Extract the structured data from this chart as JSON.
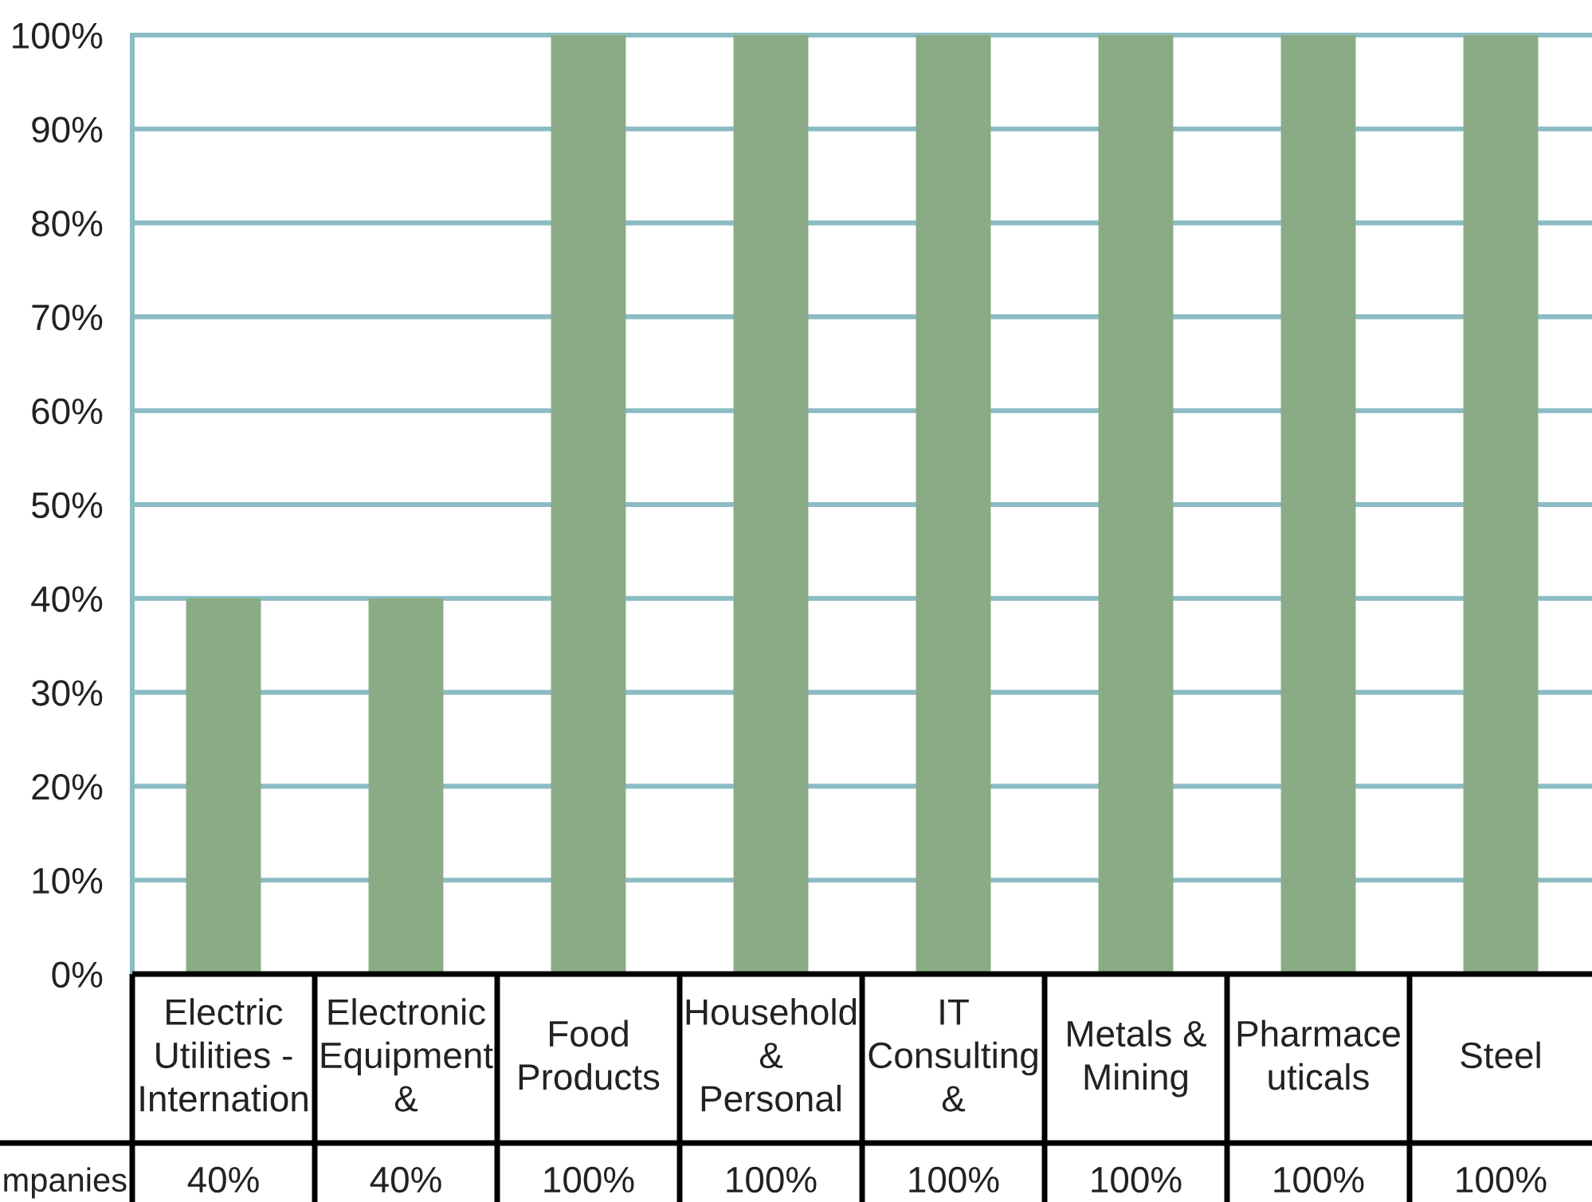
{
  "chart_data": {
    "type": "bar",
    "categories": [
      "Electric\nUtilities -\nInternation",
      "Electronic\nEquipment\n&",
      "Food\nProducts",
      "Household\n&\nPersonal",
      "IT\nConsulting\n&",
      "Metals &\nMining",
      "Pharmace\nuticals",
      "Steel"
    ],
    "series": [
      {
        "name": "mpanies",
        "color": "#8aab85",
        "values": [
          40,
          40,
          100,
          100,
          100,
          100,
          100,
          100
        ],
        "value_labels": [
          "40%",
          "40%",
          "100%",
          "100%",
          "100%",
          "100%",
          "100%",
          "100%"
        ]
      }
    ],
    "ylim": [
      0,
      100
    ],
    "yticks": [
      {
        "value": 0,
        "label": "0%"
      },
      {
        "value": 10,
        "label": "10%"
      },
      {
        "value": 20,
        "label": "20%"
      },
      {
        "value": 30,
        "label": "30%"
      },
      {
        "value": 40,
        "label": "40%"
      },
      {
        "value": 50,
        "label": "50%"
      },
      {
        "value": 60,
        "label": "60%"
      },
      {
        "value": 70,
        "label": "70%"
      },
      {
        "value": 80,
        "label": "80%"
      },
      {
        "value": 90,
        "label": "90%"
      },
      {
        "value": 100,
        "label": "100%"
      }
    ],
    "grid": "y"
  }
}
